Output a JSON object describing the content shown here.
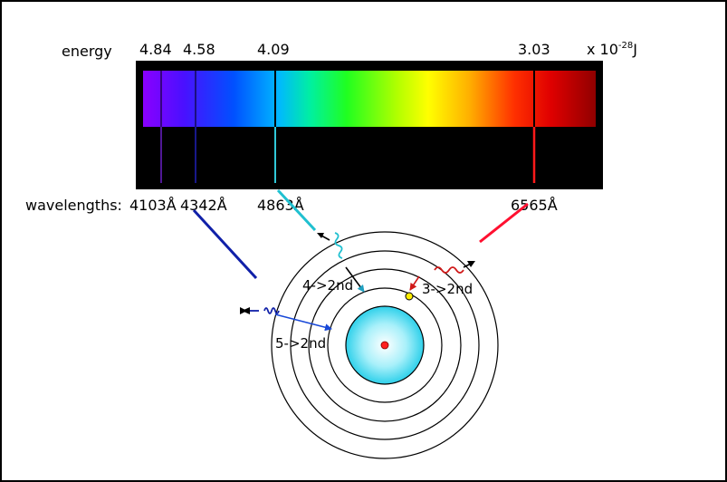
{
  "energy": {
    "label": "energy",
    "values": [
      "4.84",
      "4.58",
      "4.09",
      "3.03"
    ],
    "unit_prefix": "x 10",
    "unit_exponent": "-28",
    "unit_suffix": "J"
  },
  "wavelengths": {
    "label": "wavelengths:",
    "values": [
      "4103Å",
      "4342Å",
      "4863Å",
      "6565Å"
    ]
  },
  "spectral_lines": [
    {
      "energy": "4.84",
      "wavelength": "4103Å",
      "color": "#7a2bd6"
    },
    {
      "energy": "4.58",
      "wavelength": "4342Å",
      "color": "#1f1fb0"
    },
    {
      "energy": "4.09",
      "wavelength": "4863Å",
      "color": "#2ec4d6"
    },
    {
      "energy": "3.03",
      "wavelength": "6565Å",
      "color": "#ff1a1a"
    }
  ],
  "transitions": {
    "five_to_second": "5->2nd",
    "four_to_second": "4->2nd",
    "three_to_second": "3->2nd"
  },
  "colors": {
    "red_line": "#ff1030",
    "cyan_line": "#20c0d0",
    "blue_line": "#1020a8",
    "electron": "#ffee00",
    "nucleus": "#ff2020",
    "core_glow": "#7fe6f6"
  }
}
